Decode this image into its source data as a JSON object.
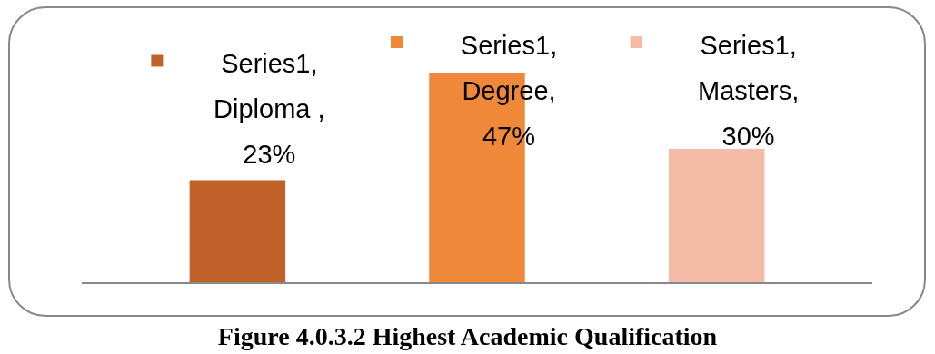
{
  "chart_data": {
    "type": "bar",
    "title": "Figure 4.0.3.2 Highest Academic Qualification",
    "categories": [
      null,
      null,
      null
    ],
    "values": [
      23,
      47,
      30
    ],
    "colors": [
      "#c0622a",
      "#f0883a",
      "#f4bba6"
    ],
    "value_labels": [
      "Series1, Diploma , 23%",
      "Series1, Degree, 47%",
      "Series1, Masters, 30%"
    ]
  }
}
